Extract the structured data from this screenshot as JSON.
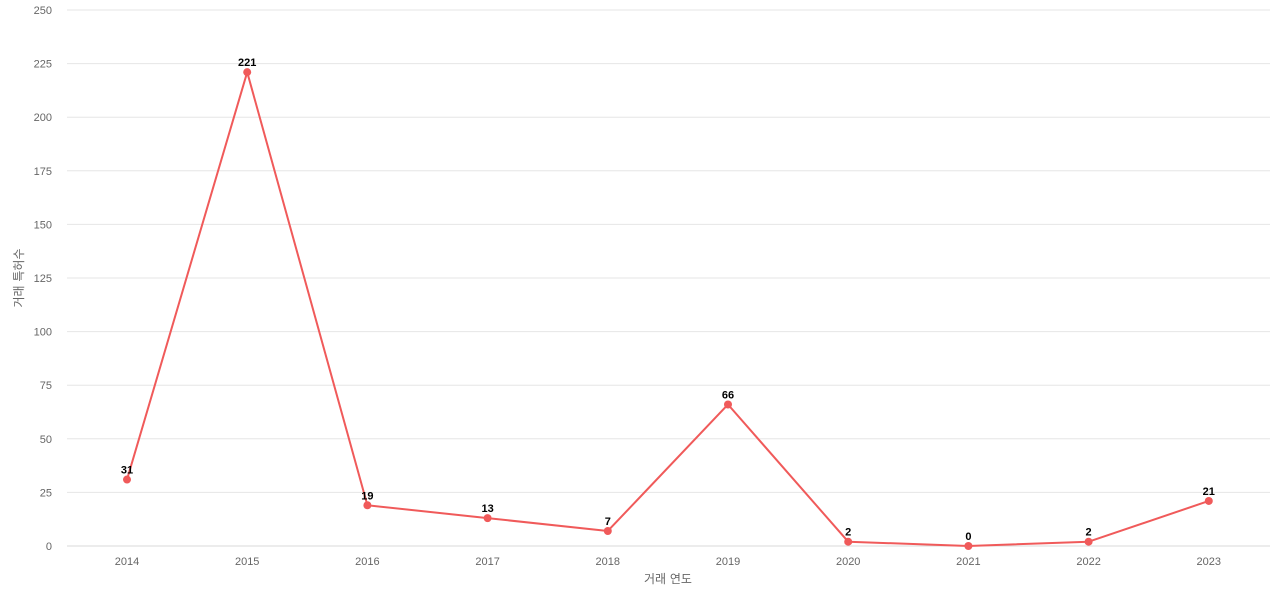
{
  "chart_data": {
    "type": "line",
    "categories": [
      "2014",
      "2015",
      "2016",
      "2017",
      "2018",
      "2019",
      "2020",
      "2021",
      "2022",
      "2023"
    ],
    "values": [
      31,
      221,
      19,
      13,
      7,
      66,
      2,
      0,
      2,
      21
    ],
    "xlabel": "거래 연도",
    "ylabel": "거래 특허수",
    "ylim": [
      0,
      250
    ],
    "yticks": [
      0,
      25,
      50,
      75,
      100,
      125,
      150,
      175,
      200,
      225,
      250
    ],
    "grid": true,
    "data_labels": true,
    "colors": {
      "series": "#f05a5a",
      "grid": "#e6e6e6"
    }
  }
}
